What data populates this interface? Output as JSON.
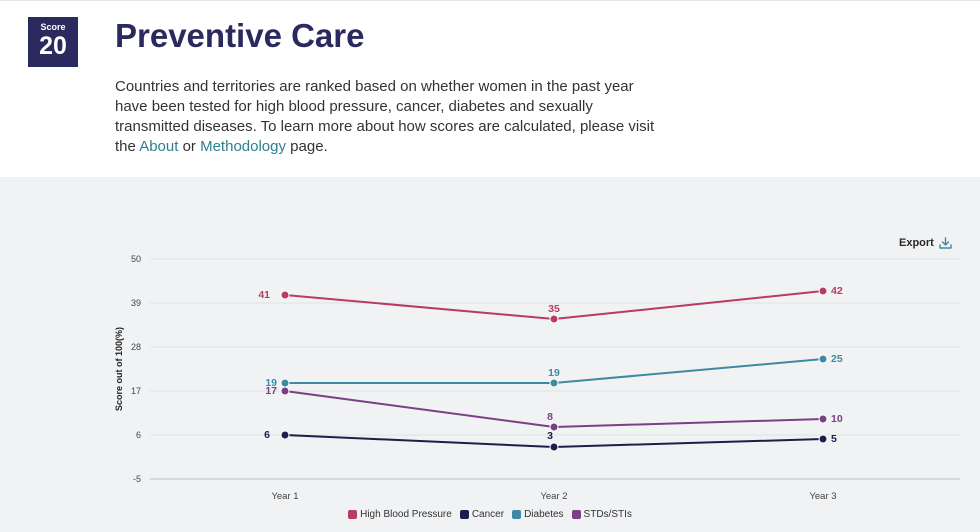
{
  "header": {
    "score_label": "Score",
    "score_value": "20",
    "title": "Preventive Care",
    "description_text": "Countries and territories are ranked based on whether women in the past year have been tested for high blood pressure, cancer, diabetes and sexually transmitted diseases. To learn more about how scores are calculated, please visit the ",
    "about_link": "About",
    "or_text": " or ",
    "methodology_link": "Methodology",
    "page_text": " page."
  },
  "export": {
    "label": "Export",
    "icon": "download-icon"
  },
  "colors": {
    "navy": "#2b2a5e",
    "link": "#2f7f8f",
    "panel": "#f1f2f4"
  },
  "chart_data": {
    "type": "line",
    "title": "",
    "xlabel": "",
    "ylabel": "Score out of 100(%)",
    "categories": [
      "Year 1",
      "Year 2",
      "Year 3"
    ],
    "ylim": [
      -5,
      50
    ],
    "yticks": [
      -5,
      6,
      17,
      28,
      39,
      50
    ],
    "grid": true,
    "legend_position": "bottom",
    "series": [
      {
        "name": "High Blood Pressure",
        "color": "#b83b63",
        "values": [
          41,
          35,
          42
        ]
      },
      {
        "name": "Cancer",
        "color": "#1a1f4b",
        "values": [
          6,
          3,
          5
        ]
      },
      {
        "name": "Diabetes",
        "color": "#3e8aa2",
        "values": [
          19,
          19,
          25
        ]
      },
      {
        "name": "STDs/STIs",
        "color": "#7a3f86",
        "values": [
          17,
          8,
          10
        ]
      }
    ]
  }
}
